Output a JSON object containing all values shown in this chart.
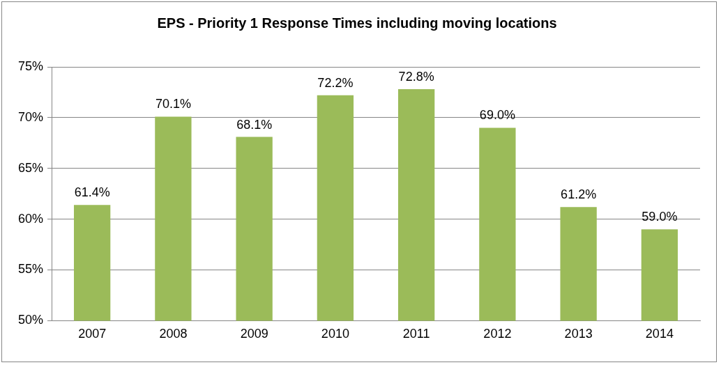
{
  "chart_data": {
    "type": "bar",
    "title": "EPS - Priority 1 Response Times including moving locations",
    "categories": [
      "2007",
      "2008",
      "2009",
      "2010",
      "2011",
      "2012",
      "2013",
      "2014"
    ],
    "values": [
      61.4,
      70.1,
      68.1,
      72.2,
      72.8,
      69.0,
      61.2,
      59.0
    ],
    "value_labels": [
      "61.4%",
      "70.1%",
      "68.1%",
      "72.2%",
      "72.8%",
      "69.0%",
      "61.2%",
      "59.0%"
    ],
    "color": "#9bbb59",
    "ylim": [
      50,
      75
    ],
    "yticks": [
      {
        "value": 50,
        "label": "50%"
      },
      {
        "value": 55,
        "label": "55%"
      },
      {
        "value": 60,
        "label": "60%"
      },
      {
        "value": 65,
        "label": "65%"
      },
      {
        "value": 70,
        "label": "70%"
      },
      {
        "value": 75,
        "label": "75%"
      }
    ],
    "grid": "y",
    "legend": false
  }
}
